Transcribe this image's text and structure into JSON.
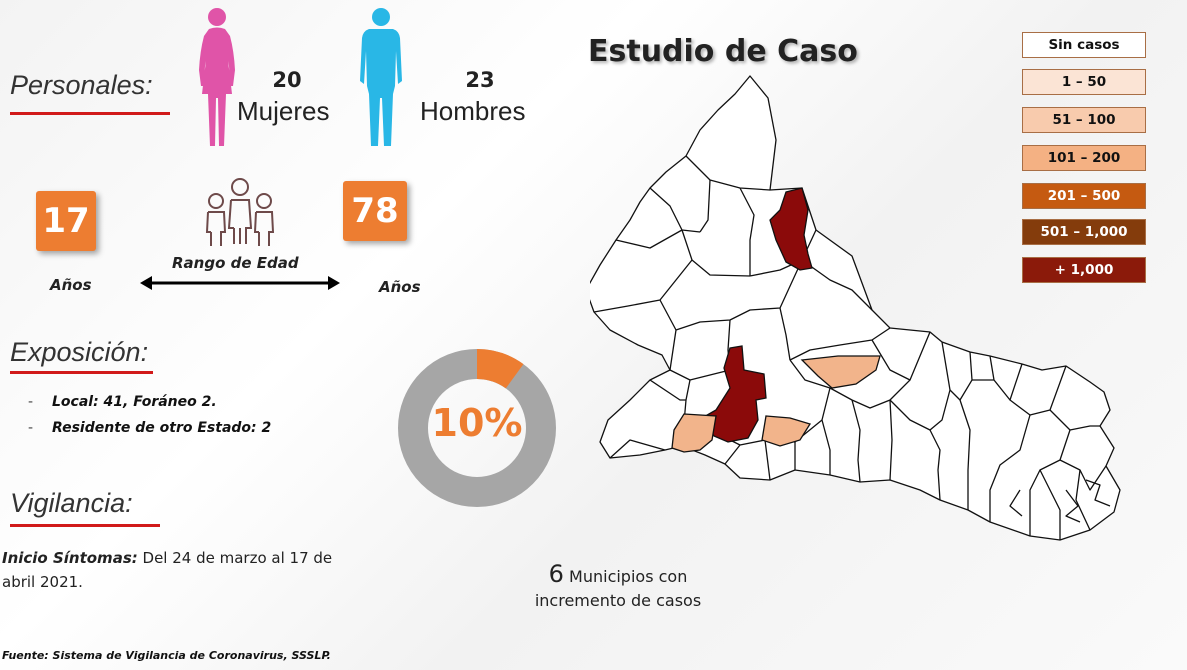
{
  "personales": {
    "title": "Personales:",
    "women_count": "20",
    "women_label": "Mujeres",
    "men_count": "23",
    "men_label": "Hombres"
  },
  "age": {
    "min": "17",
    "max": "78",
    "min_unit": "Años",
    "max_unit": "Años",
    "range_label": "Rango de Edad"
  },
  "exposicion": {
    "title": "Exposición:",
    "items": [
      "Local:  41, Foráneo 2.",
      "Residente de otro Estado: 2"
    ]
  },
  "donut": {
    "label": "10%",
    "fraction": 0.1,
    "accent": "#ed7d31",
    "track": "#a6a6a6"
  },
  "vigilancia": {
    "title": "Vigilancia:",
    "label": "Inicio Síntomas:",
    "text": " Del 24 de marzo al 17 de abril 2021."
  },
  "map": {
    "title": "Estudio de Caso"
  },
  "legend": [
    {
      "label": "Sin casos",
      "color": "#ffffff",
      "text": "#111111"
    },
    {
      "label": "1 – 50",
      "color": "#fbe4d5",
      "text": "#111111"
    },
    {
      "label": "51 – 100",
      "color": "#f8cbad",
      "text": "#111111"
    },
    {
      "label": "101 – 200",
      "color": "#f4b183",
      "text": "#111111"
    },
    {
      "label": "201 – 500",
      "color": "#c55a11",
      "text": "#ffffff"
    },
    {
      "label": "501 – 1,000",
      "color": "#843c0c",
      "text": "#ffffff"
    },
    {
      "label": "+ 1,000",
      "color": "#8b1a0a",
      "text": "#ffffff"
    }
  ],
  "municipios": {
    "count": "6",
    "line1": "Municipios con",
    "line2": "incremento de casos"
  },
  "footer": "Fuente: Sistema de Vigilancia de Coronavirus, SSSLP.",
  "colors": {
    "accent_red": "#d11a1a",
    "orange": "#ed7d31",
    "female": "#e054a8",
    "male": "#29b7e6",
    "dark_red": "#8b0a0a",
    "light_orange": "#f2b48b"
  }
}
